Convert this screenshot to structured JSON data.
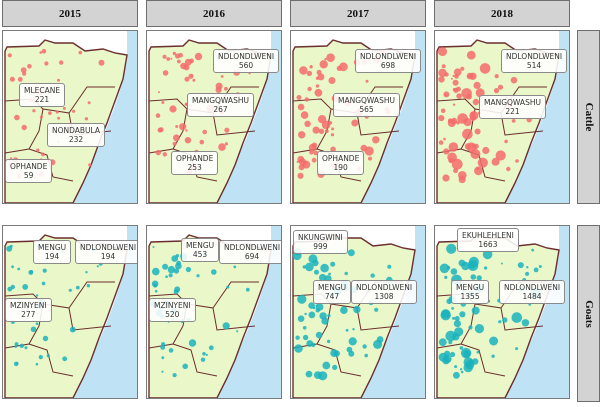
{
  "headers": {
    "years": [
      "2015",
      "2016",
      "2017",
      "2018"
    ],
    "rows": [
      "Cattle",
      "Goats"
    ]
  },
  "colors": {
    "land": "#e9f7c9",
    "sea": "#bfe3f5",
    "boundary": "#6b2d2d",
    "cattle": "#f46b6b",
    "goats": "#1ab3bd"
  },
  "panels": [
    {
      "row": "Cattle",
      "year": "2015",
      "labels": [
        {
          "name": "MLECANE",
          "value": "221"
        },
        {
          "name": "NONDABULA",
          "value": "232"
        },
        {
          "name": "OPHANDE",
          "value": "59"
        }
      ]
    },
    {
      "row": "Cattle",
      "year": "2016",
      "labels": [
        {
          "name": "NDLONDLWENI",
          "value": "560"
        },
        {
          "name": "MANGQWASHU",
          "value": "267"
        },
        {
          "name": "OPHANDE",
          "value": "253"
        }
      ]
    },
    {
      "row": "Cattle",
      "year": "2017",
      "labels": [
        {
          "name": "NDLONDLWENI",
          "value": "698"
        },
        {
          "name": "MANGQWASHU",
          "value": "565"
        },
        {
          "name": "OPHANDE",
          "value": "190"
        }
      ]
    },
    {
      "row": "Cattle",
      "year": "2018",
      "labels": [
        {
          "name": "NDLONDLWENI",
          "value": "514"
        },
        {
          "name": "MANGQWASHU",
          "value": "221"
        }
      ]
    },
    {
      "row": "Goats",
      "year": "2015",
      "labels": [
        {
          "name": "MENGU",
          "value": "194"
        },
        {
          "name": "NDLONDLWENI",
          "value": "194"
        },
        {
          "name": "MZINYENI",
          "value": "277"
        }
      ]
    },
    {
      "row": "Goats",
      "year": "2016",
      "labels": [
        {
          "name": "MENGU",
          "value": "453"
        },
        {
          "name": "NDLONDLWENI",
          "value": "694"
        },
        {
          "name": "MZINYENI",
          "value": "520"
        }
      ]
    },
    {
      "row": "Goats",
      "year": "2017",
      "labels": [
        {
          "name": "NKUNGWINI",
          "value": "999"
        },
        {
          "name": "MENGU",
          "value": "747"
        },
        {
          "name": "NDLONDLWENI",
          "value": "1308"
        }
      ]
    },
    {
      "row": "Goats",
      "year": "2018",
      "labels": [
        {
          "name": "EKUHLEHLENI",
          "value": "1663"
        },
        {
          "name": "MENGU",
          "value": "1355"
        },
        {
          "name": "NDLONDLWENI",
          "value": "1484"
        }
      ]
    }
  ]
}
